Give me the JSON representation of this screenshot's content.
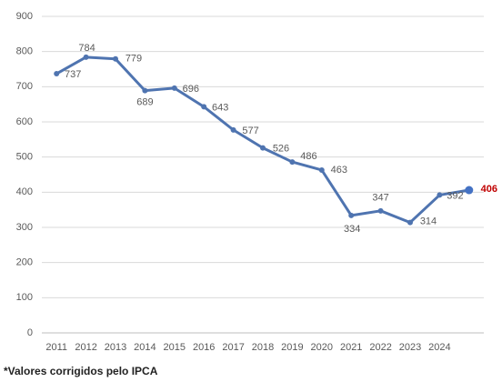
{
  "chart_data": {
    "type": "line",
    "categories": [
      "2011",
      "2012",
      "2013",
      "2014",
      "2015",
      "2016",
      "2017",
      "2018",
      "2019",
      "2020",
      "2021",
      "2022",
      "2023",
      "2024",
      null
    ],
    "values": [
      737,
      784,
      779,
      689,
      696,
      643,
      577,
      526,
      486,
      463,
      334,
      347,
      314,
      392,
      406
    ],
    "color": "#4f74b0",
    "label_color": "#595959",
    "highlight_color": "#c00000",
    "ylim": [
      0,
      900
    ],
    "yticks": [
      0,
      100,
      200,
      300,
      400,
      500,
      600,
      700,
      800,
      900
    ],
    "grid": true,
    "footnote": "*Valores corrigidos pelo IPCA"
  }
}
